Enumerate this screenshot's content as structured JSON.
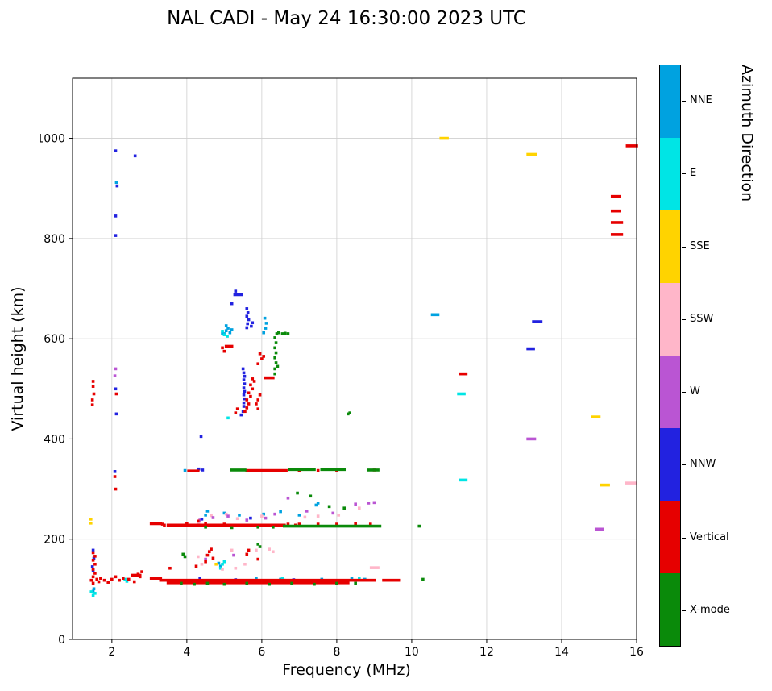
{
  "title": "NAL CADI - May 24 16:30:00 2023 UTC",
  "chart_data": {
    "type": "scatter",
    "title": "NAL CADI - May 24 16:30:00 2023 UTC",
    "xlabel": "Frequency (MHz)",
    "ylabel": "Virtual height (km)",
    "colorbar_title": "Azimuth Direction",
    "xlim": [
      0.95,
      16.0
    ],
    "ylim": [
      0,
      1120
    ],
    "xticks": [
      2,
      4,
      6,
      8,
      10,
      12,
      14,
      16
    ],
    "yticks": [
      0,
      200,
      400,
      600,
      800,
      1000
    ],
    "grid": true,
    "grid_color": "#cfcfcf",
    "marker_px": 3.6,
    "legend_position": "right-colorbar",
    "series": [
      {
        "name": "NNE",
        "color": "#00A2E0",
        "points": [
          [
            5.0,
            610
          ],
          [
            5.05,
            616
          ],
          [
            5.1,
            621
          ],
          [
            5.15,
            612
          ],
          [
            5.2,
            618
          ],
          [
            5.05,
            626
          ],
          [
            4.95,
            611
          ],
          [
            6.05,
            612
          ],
          [
            6.1,
            621
          ],
          [
            6.12,
            631
          ],
          [
            6.08,
            641
          ],
          [
            4.5,
            248
          ],
          [
            4.55,
            256
          ],
          [
            5.0,
            252
          ],
          [
            5.4,
            248
          ],
          [
            6.05,
            250
          ],
          [
            6.5,
            255
          ],
          [
            7.0,
            248
          ],
          [
            7.45,
            268
          ],
          [
            7.5,
            272
          ],
          [
            5.85,
            122
          ],
          [
            6.5,
            120
          ],
          [
            7.6,
            120
          ],
          [
            8.4,
            122
          ],
          [
            8.75,
            120
          ],
          [
            1.5,
            96
          ],
          [
            1.52,
            101
          ],
          [
            4.85,
            152
          ],
          [
            4.9,
            146
          ],
          [
            3.95,
            337
          ],
          [
            2.12,
            912
          ]
        ],
        "segments": [
          [
            10.55,
            10.7,
            648
          ]
        ]
      },
      {
        "name": "E",
        "color": "#00E5E5",
        "points": [
          [
            5.0,
            608
          ],
          [
            5.08,
            605
          ],
          [
            4.95,
            615
          ],
          [
            6.55,
            122
          ],
          [
            6.6,
            118
          ],
          [
            8.6,
            121
          ],
          [
            2.35,
            120
          ],
          [
            2.4,
            116
          ],
          [
            4.9,
            142
          ],
          [
            4.95,
            150
          ],
          [
            5.0,
            155
          ],
          [
            1.45,
            95
          ],
          [
            1.5,
            88
          ],
          [
            1.55,
            92
          ],
          [
            5.1,
            442
          ]
        ],
        "segments": [
          [
            11.25,
            11.4,
            490
          ],
          [
            11.3,
            11.45,
            318
          ]
        ]
      },
      {
        "name": "SSE",
        "color": "#FFD300",
        "points": [
          [
            1.44,
            240
          ],
          [
            1.44,
            232
          ],
          [
            4.78,
            150
          ]
        ],
        "segments": [
          [
            10.78,
            10.95,
            1000
          ],
          [
            13.1,
            13.3,
            968
          ],
          [
            14.82,
            15.0,
            444
          ],
          [
            15.05,
            15.25,
            308
          ]
        ]
      },
      {
        "name": "SSW",
        "color": "#FFB6C9",
        "points": [
          [
            4.3,
            165
          ],
          [
            4.6,
            176
          ],
          [
            5.2,
            178
          ],
          [
            5.55,
            150
          ],
          [
            6.2,
            180
          ],
          [
            4.95,
            140
          ],
          [
            5.3,
            142
          ],
          [
            4.4,
            150
          ],
          [
            5.85,
            178
          ],
          [
            6.3,
            175
          ],
          [
            4.65,
            247
          ],
          [
            5.05,
            250
          ],
          [
            5.35,
            241
          ],
          [
            6.0,
            246
          ],
          [
            7.5,
            246
          ],
          [
            8.05,
            248
          ],
          [
            8.6,
            262
          ],
          [
            7.15,
            244
          ],
          [
            4.32,
            233
          ]
        ],
        "segments": [
          [
            15.72,
            15.95,
            312
          ],
          [
            8.92,
            9.1,
            143
          ]
        ]
      },
      {
        "name": "W",
        "color": "#BA55D3",
        "points": [
          [
            2.1,
            540
          ],
          [
            2.08,
            526
          ],
          [
            4.35,
            238
          ],
          [
            4.7,
            243
          ],
          [
            5.1,
            246
          ],
          [
            5.6,
            238
          ],
          [
            6.1,
            242
          ],
          [
            6.35,
            250
          ],
          [
            7.2,
            256
          ],
          [
            7.9,
            252
          ],
          [
            8.5,
            270
          ],
          [
            8.85,
            272
          ],
          [
            9.0,
            273
          ],
          [
            5.25,
            168
          ],
          [
            4.5,
            160
          ],
          [
            6.7,
            282
          ]
        ],
        "segments": [
          [
            13.1,
            13.28,
            400
          ],
          [
            14.92,
            15.1,
            220
          ]
        ]
      },
      {
        "name": "NNW",
        "color": "#2222E0",
        "points": [
          [
            2.1,
            975
          ],
          [
            2.14,
            905
          ],
          [
            2.1,
            845
          ],
          [
            2.1,
            806
          ],
          [
            2.62,
            965
          ],
          [
            2.1,
            500
          ],
          [
            2.12,
            450
          ],
          [
            2.08,
            335
          ],
          [
            1.5,
            178
          ],
          [
            1.52,
            162
          ],
          [
            1.48,
            145
          ],
          [
            1.5,
            138
          ],
          [
            5.52,
            465
          ],
          [
            5.52,
            472
          ],
          [
            5.54,
            480
          ],
          [
            5.52,
            488
          ],
          [
            5.54,
            495
          ],
          [
            5.52,
            502
          ],
          [
            5.54,
            510
          ],
          [
            5.52,
            518
          ],
          [
            5.54,
            525
          ],
          [
            5.52,
            532
          ],
          [
            5.5,
            540
          ],
          [
            5.45,
            448
          ],
          [
            5.5,
            455
          ],
          [
            5.6,
            622
          ],
          [
            5.62,
            630
          ],
          [
            5.65,
            638
          ],
          [
            5.6,
            645
          ],
          [
            5.63,
            652
          ],
          [
            5.6,
            660
          ],
          [
            5.72,
            625
          ],
          [
            5.75,
            632
          ],
          [
            5.3,
            695
          ],
          [
            5.2,
            670
          ],
          [
            4.38,
            405
          ],
          [
            4.32,
            340
          ],
          [
            4.42,
            338
          ],
          [
            4.35,
            121
          ],
          [
            5.3,
            119
          ],
          [
            6.85,
            119
          ],
          [
            4.4,
            240
          ],
          [
            5.7,
            242
          ]
        ],
        "segments": [
          [
            5.28,
            5.45,
            688
          ],
          [
            13.1,
            13.25,
            580
          ],
          [
            13.25,
            13.45,
            634
          ]
        ]
      },
      {
        "name": "Vertical",
        "color": "#E60000",
        "points": [
          [
            1.45,
            118
          ],
          [
            1.5,
            112
          ],
          [
            1.5,
            125
          ],
          [
            1.55,
            132
          ],
          [
            1.5,
            140
          ],
          [
            1.55,
            150
          ],
          [
            1.5,
            158
          ],
          [
            1.55,
            166
          ],
          [
            1.5,
            173
          ],
          [
            1.6,
            120
          ],
          [
            1.65,
            115
          ],
          [
            1.7,
            122
          ],
          [
            1.8,
            118
          ],
          [
            1.9,
            114
          ],
          [
            2.0,
            120
          ],
          [
            2.1,
            125
          ],
          [
            2.2,
            118
          ],
          [
            2.3,
            122
          ],
          [
            2.45,
            120
          ],
          [
            2.6,
            115
          ],
          [
            2.7,
            130
          ],
          [
            2.8,
            135
          ],
          [
            2.75,
            125
          ],
          [
            1.48,
            468
          ],
          [
            1.48,
            478
          ],
          [
            1.52,
            490
          ],
          [
            1.5,
            505
          ],
          [
            1.5,
            515
          ],
          [
            2.1,
            300
          ],
          [
            2.08,
            325
          ],
          [
            2.12,
            490
          ],
          [
            3.35,
            230
          ],
          [
            3.4,
            228
          ],
          [
            4.0,
            232
          ],
          [
            4.3,
            236
          ],
          [
            4.5,
            232
          ],
          [
            5.0,
            230
          ],
          [
            6.7,
            230
          ],
          [
            6.9,
            228
          ],
          [
            5.55,
            455
          ],
          [
            5.6,
            462
          ],
          [
            5.65,
            470
          ],
          [
            5.6,
            478
          ],
          [
            5.7,
            485
          ],
          [
            5.65,
            492
          ],
          [
            5.75,
            500
          ],
          [
            5.7,
            508
          ],
          [
            5.8,
            515
          ],
          [
            5.75,
            520
          ],
          [
            5.85,
            470
          ],
          [
            5.9,
            460
          ],
          [
            5.9,
            478
          ],
          [
            5.95,
            488
          ],
          [
            6.0,
            560
          ],
          [
            5.95,
            570
          ],
          [
            6.05,
            565
          ],
          [
            5.9,
            550
          ],
          [
            5.3,
            452
          ],
          [
            5.35,
            460
          ],
          [
            4.95,
            582
          ],
          [
            5.0,
            575
          ],
          [
            4.55,
            168
          ],
          [
            4.6,
            175
          ],
          [
            4.65,
            180
          ],
          [
            4.7,
            162
          ],
          [
            5.6,
            170
          ],
          [
            5.65,
            178
          ],
          [
            4.5,
            155
          ],
          [
            5.9,
            160
          ],
          [
            3.55,
            142
          ],
          [
            4.25,
            146
          ],
          [
            7.0,
            230
          ],
          [
            7.5,
            230
          ],
          [
            8.0,
            230
          ],
          [
            8.5,
            231
          ],
          [
            8.9,
            230
          ],
          [
            7.0,
            336
          ],
          [
            7.5,
            337
          ],
          [
            8.0,
            336
          ],
          [
            9.0,
            338
          ]
        ],
        "segments": [
          [
            3.3,
            9.0,
            118
          ],
          [
            3.5,
            8.3,
            113
          ],
          [
            3.05,
            3.3,
            122
          ],
          [
            2.55,
            2.75,
            128
          ],
          [
            9.25,
            9.65,
            118
          ],
          [
            3.5,
            6.6,
            228
          ],
          [
            3.05,
            3.3,
            231
          ],
          [
            5.6,
            6.65,
            337
          ],
          [
            4.05,
            4.3,
            336
          ],
          [
            6.1,
            6.3,
            522
          ],
          [
            15.35,
            15.6,
            808
          ],
          [
            15.35,
            15.6,
            832
          ],
          [
            15.35,
            15.55,
            855
          ],
          [
            15.35,
            15.55,
            884
          ],
          [
            15.75,
            16.0,
            985
          ],
          [
            11.3,
            11.45,
            530
          ],
          [
            5.05,
            5.2,
            585
          ]
        ]
      },
      {
        "name": "X-mode",
        "color": "#0A8A0A",
        "points": [
          [
            4.5,
            224
          ],
          [
            5.2,
            223
          ],
          [
            5.9,
            224
          ],
          [
            6.3,
            224
          ],
          [
            6.35,
            540
          ],
          [
            6.38,
            552
          ],
          [
            6.35,
            562
          ],
          [
            6.38,
            572
          ],
          [
            6.35,
            582
          ],
          [
            6.38,
            592
          ],
          [
            6.35,
            602
          ],
          [
            6.4,
            610
          ],
          [
            6.45,
            612
          ],
          [
            6.55,
            610
          ],
          [
            6.62,
            611
          ],
          [
            6.7,
            610
          ],
          [
            6.35,
            530
          ],
          [
            6.42,
            545
          ],
          [
            8.3,
            450
          ],
          [
            8.35,
            452
          ],
          [
            10.2,
            226
          ],
          [
            10.3,
            120
          ],
          [
            4.55,
            112
          ],
          [
            5.0,
            110
          ],
          [
            5.6,
            112
          ],
          [
            6.2,
            110
          ],
          [
            6.8,
            112
          ],
          [
            7.4,
            110
          ],
          [
            8.0,
            112
          ],
          [
            8.5,
            112
          ],
          [
            3.85,
            112
          ],
          [
            4.2,
            110
          ],
          [
            5.9,
            190
          ],
          [
            5.95,
            185
          ],
          [
            3.9,
            170
          ],
          [
            3.95,
            165
          ],
          [
            6.95,
            292
          ],
          [
            7.3,
            286
          ],
          [
            7.8,
            265
          ],
          [
            8.2,
            262
          ]
        ],
        "segments": [
          [
            6.6,
            9.15,
            226
          ],
          [
            5.2,
            5.55,
            338
          ],
          [
            6.75,
            7.4,
            339
          ],
          [
            7.6,
            8.2,
            339
          ],
          [
            8.85,
            9.1,
            338
          ]
        ]
      }
    ]
  }
}
